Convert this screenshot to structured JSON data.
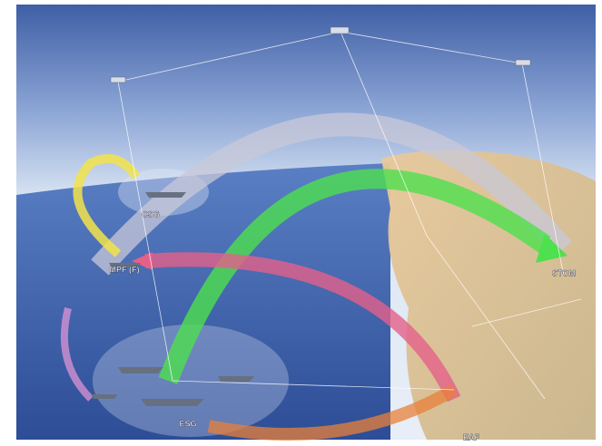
{
  "nodes": [
    {
      "label": "CSG"
    },
    {
      "label": "MPF (F)"
    },
    {
      "label": "ESG"
    },
    {
      "label": "STOM"
    },
    {
      "label": "EAF"
    }
  ]
}
